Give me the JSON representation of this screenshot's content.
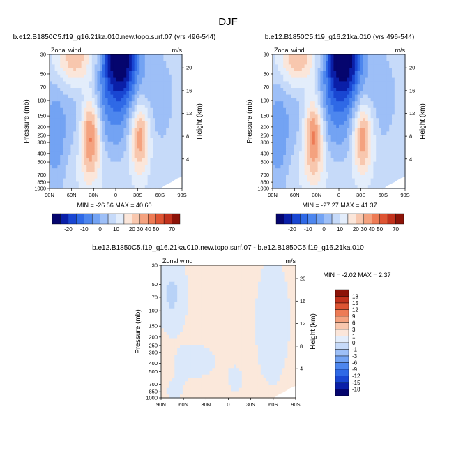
{
  "figure_title": "DJF",
  "chart_data": [
    {
      "type": "heatmap",
      "title": "b.e12.B1850C5.f19_g16.21ka.010.new.topo.surf.07 (yrs 496-544)",
      "variable_label": "Zonal wind",
      "units_label": "m/s",
      "ylabel": "Pressure (mb)",
      "y2label": "Height (km)",
      "x_ticks": [
        "90N",
        "60N",
        "30N",
        "0",
        "30S",
        "60S",
        "90S"
      ],
      "y_ticks": [
        "30",
        "50",
        "70",
        "100",
        "150",
        "200",
        "250",
        "300",
        "400",
        "500",
        "700",
        "850",
        "1000"
      ],
      "y2_ticks": [
        "20",
        "16",
        "12",
        "8",
        "4"
      ],
      "stats": "MIN = -26.56   MAX =  40.60",
      "colorbar_labels": [
        "-20",
        "-10",
        "0",
        "10",
        "20",
        "30",
        "40",
        "50",
        "70"
      ]
    },
    {
      "type": "heatmap",
      "title": "b.e12.B1850C5.f19_g16.21ka.010 (yrs 496-544)",
      "variable_label": "Zonal wind",
      "units_label": "m/s",
      "ylabel": "Pressure (mb)",
      "y2label": "Height (km)",
      "x_ticks": [
        "90N",
        "60N",
        "30N",
        "0",
        "30S",
        "60S",
        "90S"
      ],
      "y_ticks": [
        "30",
        "50",
        "70",
        "100",
        "150",
        "200",
        "250",
        "300",
        "400",
        "500",
        "700",
        "850",
        "1000"
      ],
      "y2_ticks": [
        "20",
        "16",
        "12",
        "8",
        "4"
      ],
      "stats": "MIN = -27.27   MAX =  41.37",
      "colorbar_labels": [
        "-20",
        "-10",
        "0",
        "10",
        "20",
        "30",
        "40",
        "50",
        "70"
      ]
    },
    {
      "type": "heatmap",
      "title": "b.e12.B1850C5.f19_g16.21ka.010.new.topo.surf.07 - b.e12.B1850C5.f19_g16.21ka.010",
      "variable_label": "Zonal wind",
      "units_label": "m/s",
      "ylabel": "Pressure (mb)",
      "y2label": "Height (km)",
      "x_ticks": [
        "90N",
        "60N",
        "30N",
        "0",
        "30S",
        "60S",
        "90S"
      ],
      "y_ticks": [
        "30",
        "50",
        "70",
        "100",
        "150",
        "200",
        "250",
        "300",
        "400",
        "500",
        "700",
        "850",
        "1000"
      ],
      "y2_ticks": [
        "20",
        "16",
        "12",
        "8",
        "4"
      ],
      "stats": "MIN = -2.02   MAX =  2.37",
      "colorbar_labels": [
        "18",
        "15",
        "12",
        "9",
        "6",
        "3",
        "1",
        "0",
        "-1",
        "-3",
        "-6",
        "-9",
        "-12",
        "-15",
        "-18"
      ]
    }
  ],
  "colors": {
    "diverging": [
      "#05056e",
      "#0a1fa8",
      "#1946d2",
      "#2f69e6",
      "#4d86ee",
      "#73a3f3",
      "#9dbff7",
      "#c6daf9",
      "#e3edfb",
      "#fbe6da",
      "#f8c7ae",
      "#f4a27f",
      "#ed7b55",
      "#de5433",
      "#c2321d",
      "#8c1308"
    ]
  }
}
